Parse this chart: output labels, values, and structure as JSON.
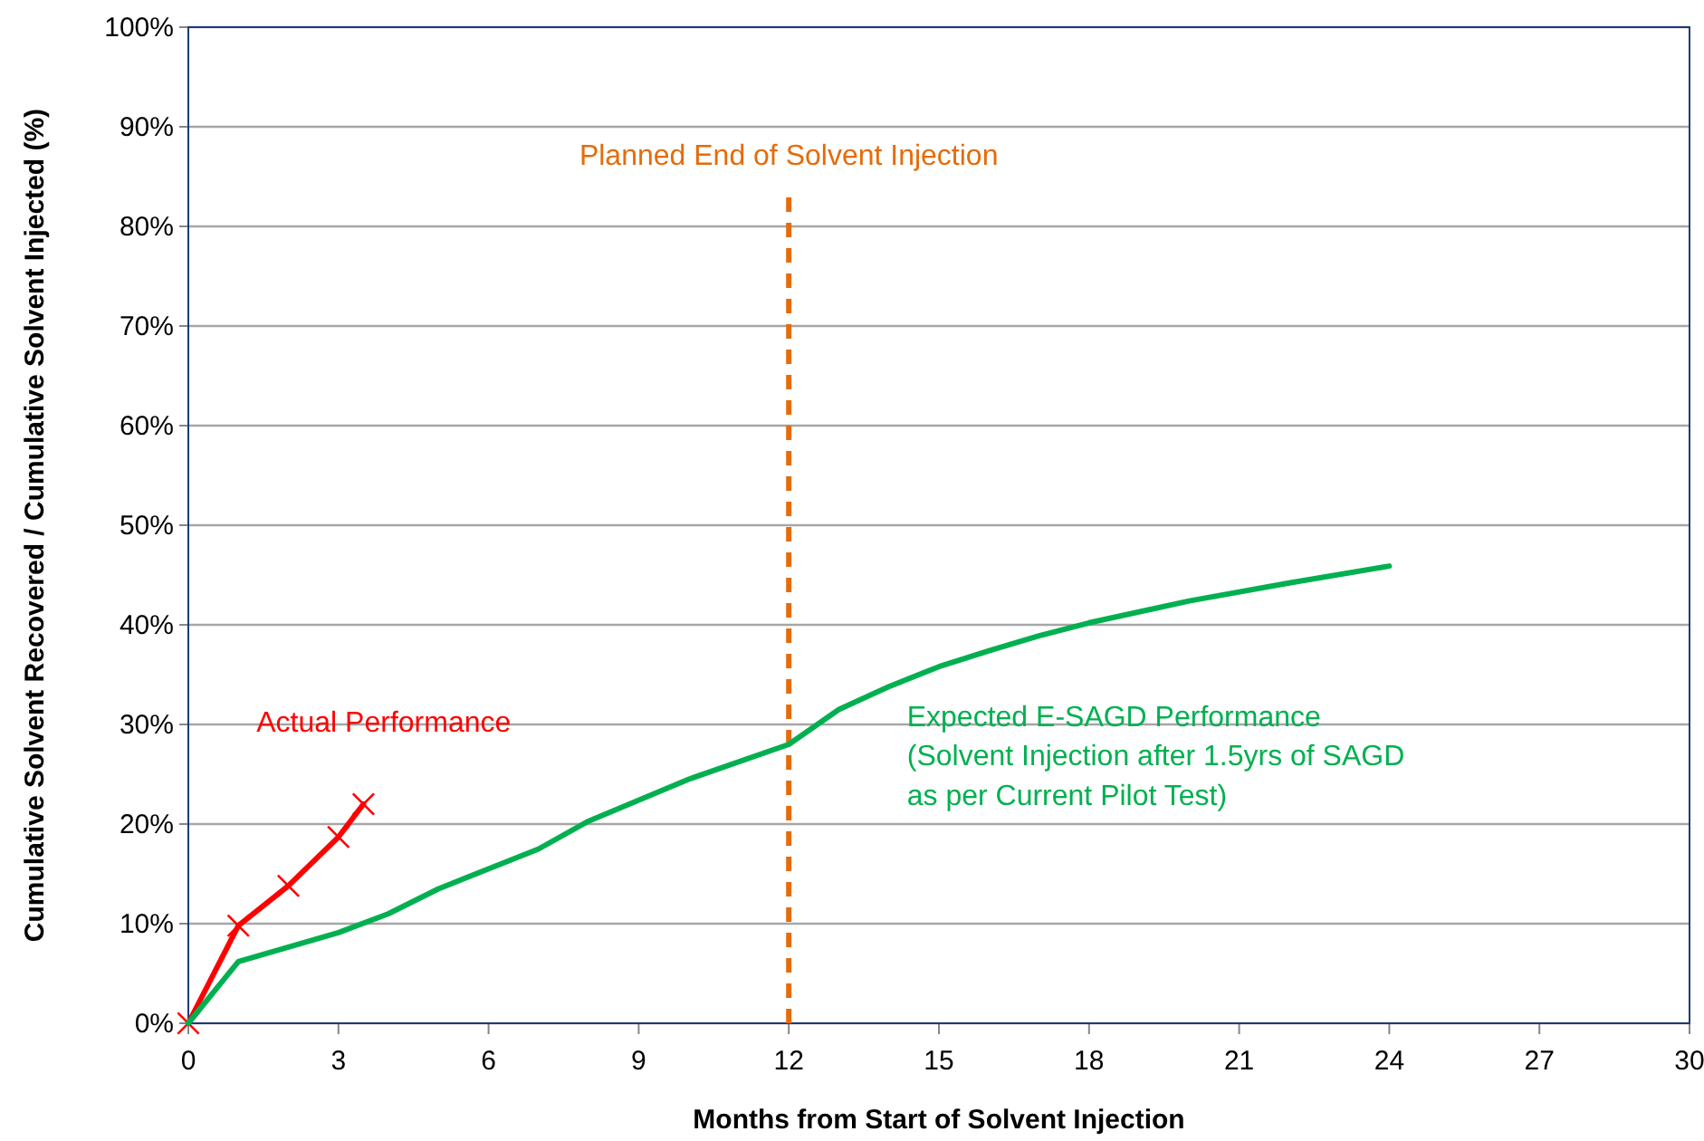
{
  "chart_data": {
    "type": "line",
    "xlabel": "Months from Start of Solvent Injection",
    "ylabel": "Cumulative Solvent Recovered / Cumulative Solvent Injected (%)",
    "xlim": [
      0,
      30
    ],
    "xticks": [
      0,
      3,
      6,
      9,
      12,
      15,
      18,
      21,
      24,
      27,
      30
    ],
    "ylim": [
      0,
      100
    ],
    "yticks": [
      {
        "value": 0,
        "label": "0%"
      },
      {
        "value": 10,
        "label": "10%"
      },
      {
        "value": 20,
        "label": "20%"
      },
      {
        "value": 30,
        "label": "30%"
      },
      {
        "value": 40,
        "label": "40%"
      },
      {
        "value": 50,
        "label": "50%"
      },
      {
        "value": 60,
        "label": "60%"
      },
      {
        "value": 70,
        "label": "70%"
      },
      {
        "value": 80,
        "label": "80%"
      },
      {
        "value": 90,
        "label": "90%"
      },
      {
        "value": 100,
        "label": "100%"
      }
    ],
    "grid": "y",
    "legend": false,
    "series": [
      {
        "name": "Actual Performance",
        "color": "#ff0000",
        "marker": "cross",
        "x": [
          0,
          1,
          2,
          3,
          3.5
        ],
        "values": [
          0,
          9.8,
          13.8,
          18.7,
          22
        ]
      },
      {
        "name": "Expected E-SAGD Performance\n(Solvent Injection after 1.5yrs of SAGD\nas per Current Pilot Test)",
        "color": "#00b050",
        "marker": "none",
        "x": [
          0,
          1,
          3,
          4,
          5,
          7,
          8,
          10,
          12,
          13,
          14,
          15,
          16,
          17,
          18,
          20,
          22,
          24
        ],
        "values": [
          0,
          6.2,
          9.1,
          11,
          13.5,
          17.5,
          20.3,
          24.5,
          28,
          31.5,
          33.8,
          35.8,
          37.4,
          38.9,
          40.2,
          42.4,
          44.2,
          45.9
        ]
      }
    ],
    "ref_lines": [
      {
        "axis": "x",
        "value": 12,
        "label": "Planned End of Solvent Injection",
        "color": "#e46c0a",
        "line_style": "dashed"
      }
    ]
  }
}
